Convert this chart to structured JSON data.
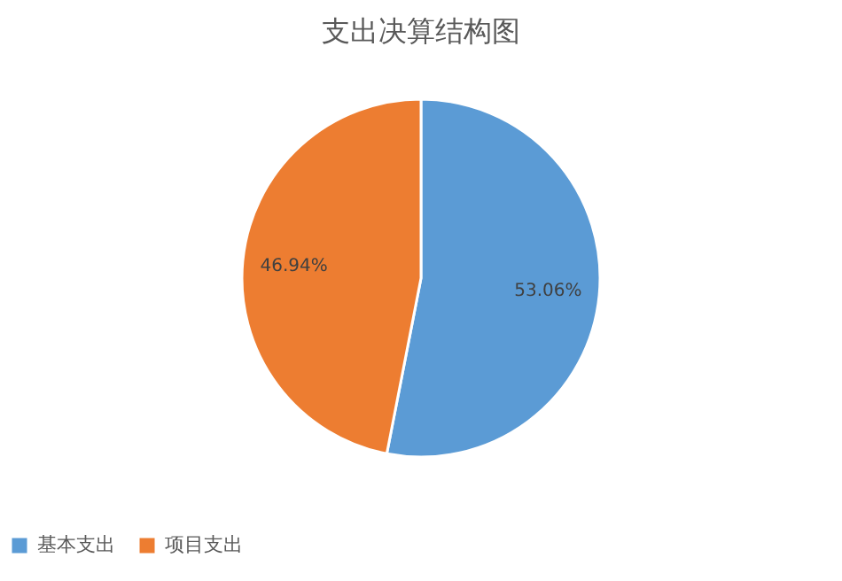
{
  "chart_data": {
    "type": "pie",
    "title": "支出决算结构图",
    "categories": [
      "基本支出",
      "项目支出"
    ],
    "values": [
      53.06,
      46.94
    ],
    "colors": [
      "#5b9bd5",
      "#ed7d31"
    ],
    "value_labels": [
      "53.06%",
      "46.94%"
    ],
    "legend": "bottom"
  }
}
